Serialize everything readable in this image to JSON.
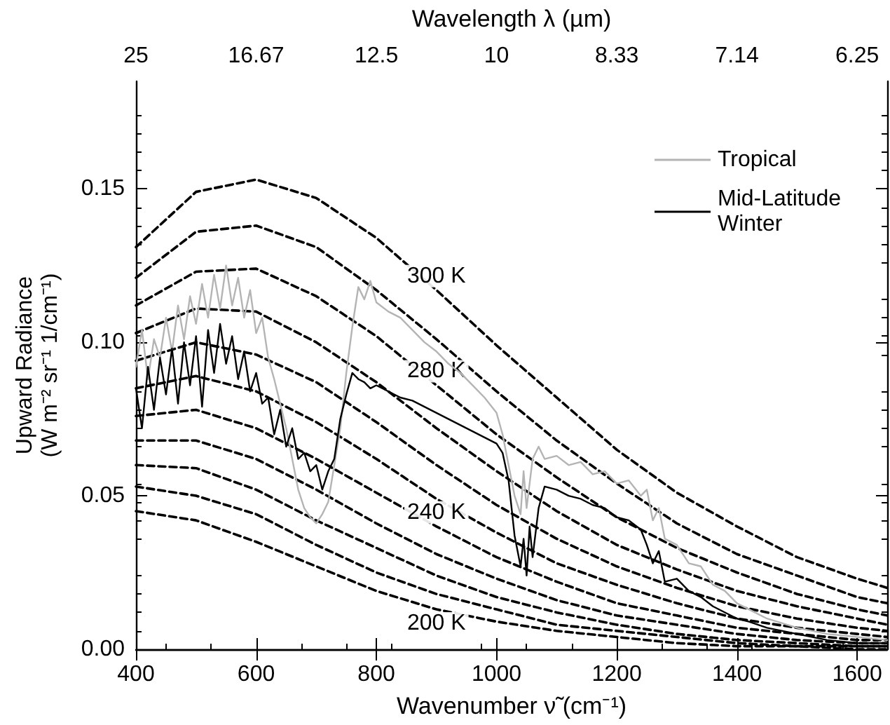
{
  "chart_data": {
    "type": "line",
    "xlabel": "Wavenumber ν̃ (cm⁻¹)",
    "x2label": "Wavelength λ (µm)",
    "ylabel": "Upward Radiance\n(W m⁻² sr⁻¹ 1/cm⁻¹)",
    "xlim": [
      400,
      1650
    ],
    "xticks": [
      400,
      600,
      800,
      1000,
      1200,
      1400,
      1600
    ],
    "annotations": [
      "25",
      "16.67",
      "12.5",
      "10",
      "8.33",
      "7.14",
      "6.25"
    ],
    "ylim": [
      0,
      0.185
    ],
    "yticks": [
      {
        "value": 0,
        "label": "0.00"
      },
      {
        "value": 0.05,
        "label": "0.05"
      },
      {
        "value": 0.1,
        "label": "0.10"
      },
      {
        "value": 0.15,
        "label": "0.15"
      }
    ],
    "grid": false,
    "legend": "top right",
    "marker": "none",
    "x": [
      400,
      500,
      600,
      700,
      800,
      900,
      1000,
      1100,
      1200,
      1300,
      1400,
      1500,
      1600,
      1650
    ],
    "series": [
      {
        "name": "300 K",
        "color": "#000000",
        "line_style": "dashed",
        "values": [
          0.131,
          0.149,
          0.153,
          0.147,
          0.134,
          0.117,
          0.099,
          0.082,
          0.065,
          0.051,
          0.04,
          0.03,
          0.023,
          0.02
        ]
      },
      {
        "color": "#000000",
        "line_style": "dashed",
        "values": [
          0.121,
          0.136,
          0.138,
          0.131,
          0.117,
          0.101,
          0.084,
          0.068,
          0.054,
          0.041,
          0.031,
          0.024,
          0.017,
          0.015
        ]
      },
      {
        "name": "280 K",
        "color": "#000000",
        "line_style": "dashed",
        "values": [
          0.112,
          0.123,
          0.124,
          0.115,
          0.102,
          0.086,
          0.07,
          0.056,
          0.043,
          0.033,
          0.025,
          0.018,
          0.013,
          0.011
        ]
      },
      {
        "color": "#000000",
        "line_style": "dashed",
        "values": [
          0.103,
          0.111,
          0.11,
          0.1,
          0.087,
          0.072,
          0.058,
          0.045,
          0.034,
          0.026,
          0.019,
          0.014,
          0.01,
          0.008
        ]
      },
      {
        "color": "#000000",
        "line_style": "dashed",
        "values": [
          0.094,
          0.1,
          0.096,
          0.087,
          0.074,
          0.06,
          0.047,
          0.036,
          0.027,
          0.02,
          0.014,
          0.01,
          0.007,
          0.006
        ]
      },
      {
        "color": "#000000",
        "line_style": "dashed",
        "values": [
          0.085,
          0.089,
          0.084,
          0.074,
          0.062,
          0.049,
          0.038,
          0.028,
          0.021,
          0.015,
          0.01,
          0.007,
          0.005,
          0.004
        ]
      },
      {
        "name": "240 K",
        "color": "#000000",
        "line_style": "dashed",
        "values": [
          0.076,
          0.078,
          0.072,
          0.062,
          0.051,
          0.04,
          0.03,
          0.022,
          0.015,
          0.011,
          0.007,
          0.005,
          0.003,
          0.003
        ]
      },
      {
        "color": "#000000",
        "line_style": "dashed",
        "values": [
          0.068,
          0.068,
          0.062,
          0.052,
          0.041,
          0.031,
          0.023,
          0.016,
          0.011,
          0.008,
          0.005,
          0.003,
          0.002,
          0.002
        ]
      },
      {
        "color": "#000000",
        "line_style": "dashed",
        "values": [
          0.06,
          0.059,
          0.052,
          0.042,
          0.033,
          0.024,
          0.017,
          0.012,
          0.008,
          0.005,
          0.003,
          0.002,
          0.001,
          0.001
        ]
      },
      {
        "color": "#000000",
        "line_style": "dashed",
        "values": [
          0.053,
          0.05,
          0.044,
          0.034,
          0.025,
          0.018,
          0.013,
          0.008,
          0.006,
          0.004,
          0.002,
          0.001,
          0.001,
          0.001
        ]
      },
      {
        "name": "200 K",
        "color": "#000000",
        "line_style": "dashed",
        "values": [
          0.045,
          0.042,
          0.035,
          0.027,
          0.019,
          0.013,
          0.009,
          0.006,
          0.004,
          0.002,
          0.001,
          0.001,
          0.0,
          0.0
        ]
      },
      {
        "name": "Tropical",
        "color": "#b4b4b4",
        "line_style": "solid",
        "x": [
          400,
          410,
          420,
          430,
          440,
          450,
          460,
          470,
          480,
          490,
          500,
          510,
          520,
          530,
          540,
          550,
          560,
          570,
          580,
          590,
          600,
          610,
          620,
          630,
          640,
          650,
          660,
          670,
          680,
          690,
          700,
          710,
          720,
          730,
          740,
          750,
          760,
          770,
          780,
          790,
          800,
          820,
          840,
          860,
          880,
          900,
          920,
          940,
          960,
          980,
          1000,
          1010,
          1020,
          1030,
          1040,
          1045,
          1050,
          1060,
          1070,
          1080,
          1100,
          1120,
          1140,
          1160,
          1180,
          1200,
          1220,
          1240,
          1250,
          1260,
          1270,
          1280,
          1300,
          1320,
          1340,
          1360,
          1380,
          1400,
          1420,
          1450,
          1500,
          1550,
          1600,
          1650
        ],
        "values": [
          0.092,
          0.104,
          0.088,
          0.101,
          0.095,
          0.108,
          0.097,
          0.112,
          0.101,
          0.115,
          0.106,
          0.119,
          0.108,
          0.122,
          0.111,
          0.125,
          0.112,
          0.121,
          0.108,
          0.117,
          0.103,
          0.108,
          0.095,
          0.088,
          0.08,
          0.072,
          0.062,
          0.052,
          0.046,
          0.043,
          0.041,
          0.044,
          0.048,
          0.06,
          0.072,
          0.09,
          0.105,
          0.118,
          0.114,
          0.12,
          0.113,
          0.11,
          0.108,
          0.104,
          0.1,
          0.097,
          0.093,
          0.09,
          0.086,
          0.082,
          0.077,
          0.07,
          0.06,
          0.05,
          0.044,
          0.058,
          0.046,
          0.062,
          0.066,
          0.062,
          0.063,
          0.06,
          0.061,
          0.057,
          0.058,
          0.054,
          0.055,
          0.05,
          0.052,
          0.042,
          0.046,
          0.036,
          0.034,
          0.028,
          0.027,
          0.021,
          0.019,
          0.015,
          0.013,
          0.01,
          0.007,
          0.005,
          0.004,
          0.003
        ]
      },
      {
        "name": "Mid-Latitude Winter",
        "color": "#000000",
        "line_style": "solid",
        "x": [
          400,
          410,
          420,
          430,
          440,
          450,
          460,
          470,
          480,
          490,
          500,
          510,
          520,
          530,
          540,
          550,
          560,
          570,
          580,
          590,
          600,
          610,
          620,
          630,
          640,
          650,
          660,
          670,
          680,
          690,
          700,
          710,
          720,
          730,
          740,
          750,
          760,
          770,
          780,
          790,
          800,
          820,
          840,
          860,
          880,
          900,
          920,
          940,
          960,
          980,
          1000,
          1010,
          1020,
          1030,
          1040,
          1045,
          1050,
          1055,
          1060,
          1070,
          1080,
          1100,
          1120,
          1140,
          1160,
          1180,
          1200,
          1220,
          1240,
          1250,
          1260,
          1270,
          1280,
          1300,
          1320,
          1340,
          1360,
          1380,
          1400,
          1420,
          1450,
          1500,
          1550,
          1600,
          1650
        ],
        "values": [
          0.085,
          0.072,
          0.092,
          0.078,
          0.095,
          0.083,
          0.098,
          0.08,
          0.1,
          0.086,
          0.102,
          0.079,
          0.104,
          0.09,
          0.106,
          0.093,
          0.102,
          0.088,
          0.097,
          0.084,
          0.09,
          0.08,
          0.082,
          0.07,
          0.078,
          0.066,
          0.072,
          0.062,
          0.064,
          0.058,
          0.06,
          0.052,
          0.058,
          0.062,
          0.075,
          0.083,
          0.09,
          0.088,
          0.087,
          0.085,
          0.086,
          0.084,
          0.082,
          0.081,
          0.079,
          0.077,
          0.075,
          0.073,
          0.071,
          0.069,
          0.067,
          0.064,
          0.055,
          0.037,
          0.027,
          0.036,
          0.024,
          0.04,
          0.03,
          0.046,
          0.053,
          0.052,
          0.05,
          0.049,
          0.047,
          0.046,
          0.043,
          0.042,
          0.039,
          0.034,
          0.028,
          0.032,
          0.022,
          0.023,
          0.019,
          0.017,
          0.014,
          0.012,
          0.01,
          0.009,
          0.007,
          0.005,
          0.003,
          0.002,
          0.002
        ]
      }
    ]
  }
}
